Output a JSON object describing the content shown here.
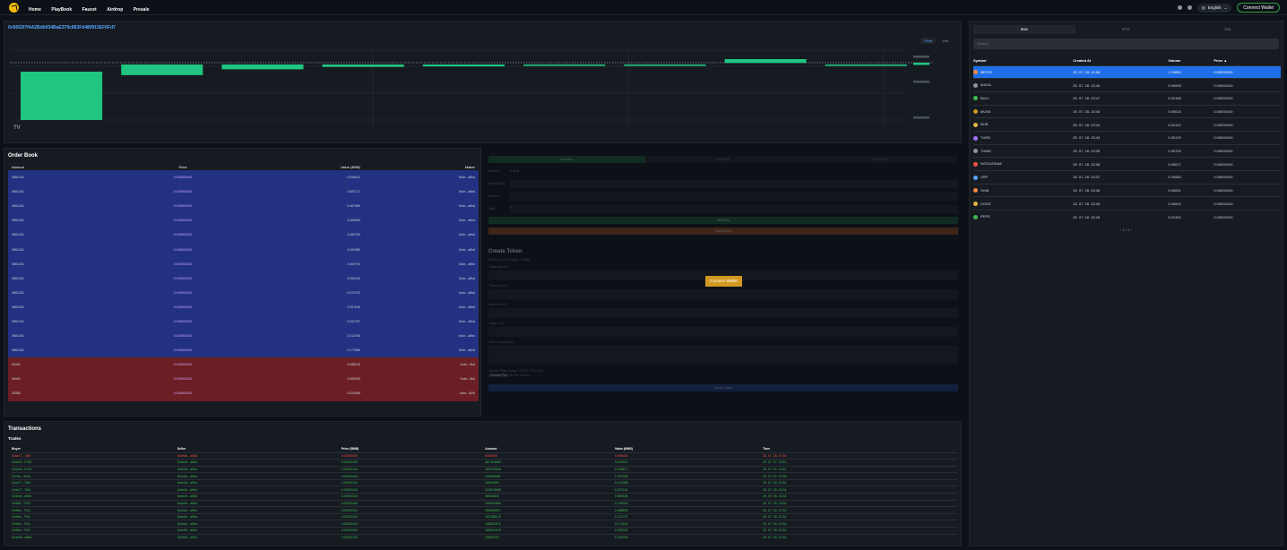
{
  "nav": {
    "items": [
      "Home",
      "PlayBook",
      "Faucet",
      "Airdrop",
      "Presale"
    ],
    "language": "English",
    "connect_label": "Connect Wallet"
  },
  "chart": {
    "address": "0x9652f7f4A2Bdb934BaE379c883Fd4Bf915EF6Fd7",
    "tabs": [
      "Price",
      "Info"
    ],
    "logo": "TV"
  },
  "chart_data": {
    "type": "bar",
    "title": "",
    "note": "candlestick-style price chart; 9 green candles descending",
    "series": [
      {
        "values": [
          1,
          0.22,
          0.1,
          0.05,
          0.04,
          0.03,
          0.03,
          0.08,
          0.03
        ]
      }
    ]
  },
  "markets": {
    "tabs": [
      "BNB",
      "ETH",
      "SOL"
    ],
    "search_placeholder": "Search",
    "headers": [
      "Symbol",
      "Created At",
      "Volume",
      "Price ▲"
    ],
    "rows": [
      {
        "symbol": "BECEX",
        "created": "25. 07. 28. 13:56",
        "volume": "1.19850",
        "price": "0.00000100",
        "color": "#f0883e"
      },
      {
        "symbol": "MAGA",
        "created": "25. 07. 28. 23:46",
        "volume": "0.00095",
        "price": "0.00000100",
        "color": "#8b949e"
      },
      {
        "symbol": "BULL",
        "created": "25. 07. 28. 23:47",
        "volume": "0.00168",
        "price": "0.00000100",
        "color": "#3fb950"
      },
      {
        "symbol": "MUSK",
        "created": "25. 07. 28. 23:45",
        "volume": "0.00015",
        "price": "0.00000100",
        "color": "#d29922"
      },
      {
        "symbol": "BOB",
        "created": "25. 07. 28. 23:44",
        "volume": "0.01412",
        "price": "0.00000100",
        "color": "#e3b341"
      },
      {
        "symbol": "TURD",
        "created": "25. 07. 28. 23:43",
        "volume": "0.00125",
        "price": "0.00000100",
        "color": "#a371f7"
      },
      {
        "symbol": "THINK",
        "created": "25. 07. 28. 23:39",
        "volume": "0.00763",
        "price": "0.00000100",
        "color": "#8b949e"
      },
      {
        "symbol": "INSTAGRAM",
        "created": "25. 07. 28. 23:38",
        "volume": "0.00017",
        "price": "0.00000100",
        "color": "#f85149"
      },
      {
        "symbol": "XRP",
        "created": "25. 07. 28. 23:37",
        "volume": "0.00083",
        "price": "0.00000100",
        "color": "#58a6ff"
      },
      {
        "symbol": "SHIB",
        "created": "25. 07. 28. 23:36",
        "volume": "0.00051",
        "price": "0.00000100",
        "color": "#f0883e"
      },
      {
        "symbol": "DOGE",
        "created": "25. 07. 28. 23:35",
        "volume": "0.00003",
        "price": "0.00000100",
        "color": "#e3b341"
      },
      {
        "symbol": "PEPE",
        "created": "25. 07. 28. 23:28",
        "volume": "0.01300",
        "price": "0.00000100",
        "color": "#3fb950"
      }
    ],
    "pager": "‹   1 / 1   ›"
  },
  "orderbook": {
    "title": "Order Book",
    "headers": [
      "Amount",
      "Price",
      "Value (BNB)",
      "Maker"
    ],
    "rows": [
      {
        "side": "buy",
        "amount": "9651234",
        "price": "0.000000100",
        "value": "0.096512",
        "maker": "0x4e...a5bd"
      },
      {
        "side": "buy",
        "amount": "9651234",
        "price": "0.000000100",
        "value": "0.681717",
        "maker": "0x4e...a5bd"
      },
      {
        "side": "buy",
        "amount": "9651234",
        "price": "0.000000100",
        "value": "0.467989",
        "maker": "0x4e...a5bd"
      },
      {
        "side": "buy",
        "amount": "9651234",
        "price": "0.000000100",
        "value": "0.466593",
        "maker": "0x4e...a5bd"
      },
      {
        "side": "buy",
        "amount": "9651234",
        "price": "0.000000100",
        "value": "0.460783",
        "maker": "0x4e...a5bd"
      },
      {
        "side": "buy",
        "amount": "9651234",
        "price": "0.000000100",
        "value": "0.420389",
        "maker": "0x4e...a5bd"
      },
      {
        "side": "buy",
        "amount": "9651234",
        "price": "0.000000100",
        "value": "0.409794",
        "maker": "0x4e...a5bd"
      },
      {
        "side": "buy",
        "amount": "9651234",
        "price": "0.000000100",
        "value": "0.390244",
        "maker": "0x4e...a5bd"
      },
      {
        "side": "buy",
        "amount": "9651234",
        "price": "0.000000100",
        "value": "0.374732",
        "maker": "0x4e...a5bd"
      },
      {
        "side": "buy",
        "amount": "9651234",
        "price": "0.000000100",
        "value": "0.357049",
        "maker": "0x4e...a5bd"
      },
      {
        "side": "buy",
        "amount": "9651234",
        "price": "0.000000100",
        "value": "0.331797",
        "maker": "0x4e...a5bd"
      },
      {
        "side": "buy",
        "amount": "9651234",
        "price": "0.000000100",
        "value": "0.313784",
        "maker": "0x4e...a5bd"
      },
      {
        "side": "buy",
        "amount": "9651234",
        "price": "0.000000100",
        "value": "0.277666",
        "maker": "0x4e...a5bd"
      },
      {
        "side": "sell",
        "amount": "99462",
        "price": "0.000000100",
        "value": "0.088216",
        "maker": "0x4e...5bd"
      },
      {
        "side": "sell",
        "amount": "56960",
        "price": "0.000000100",
        "value": "0.080093",
        "maker": "0x4e...5bd"
      },
      {
        "side": "sell",
        "amount": "26380",
        "price": "0.000000100",
        "value": "0.024958",
        "maker": "0x4e...6f2b"
      }
    ]
  },
  "trade": {
    "tabs": [
      "Limit Buy",
      "Limit Sell",
      "Cancel All"
    ],
    "fields": [
      {
        "label": "Balance",
        "value": "0 BNB"
      },
      {
        "label": "Price (BNB)",
        "value": ""
      },
      {
        "label": "Amount",
        "value": ""
      },
      {
        "label": "Total",
        "value": "0"
      }
    ],
    "buy_label": "Limit Buy",
    "sell_label": "Market Sell"
  },
  "create_token": {
    "title": "Create Token",
    "subtitle": "Bonding Curve Target: 9 BNB",
    "fields": [
      "Token Symbol *",
      "Token Name *",
      "Website URL",
      "Twitter URL",
      "Token Description"
    ],
    "upload_label": "Upload Token Image * (PNG, JPG etc.)",
    "choose_file": "Choose File",
    "no_file": "No file chosen",
    "create_label": "Create Token",
    "connect_label": "Connect Wallet"
  },
  "transactions": {
    "title": "Transactions",
    "subtitle": "Trades",
    "headers": [
      "Buyer",
      "Seller",
      "Price (BNB)",
      "Amount",
      "Value (BNB)",
      "Time"
    ],
    "rows": [
      {
        "side": "red",
        "buyer": "0x4a77...78ef",
        "seller": "0x4e4b...a5bd",
        "price": "0.00000100",
        "amount": "9050000",
        "value": "0.905000",
        "time": "25. 07. 28. 07:46"
      },
      {
        "side": "green",
        "buyer": "0x4e4b...F024",
        "seller": "0x4e4b...a5bd",
        "price": "0.00000100",
        "amount": "367164689",
        "value": "0.076457",
        "time": "25. 07. 27. 10:51"
      },
      {
        "side": "green",
        "buyer": "0x4e4b...F024",
        "seller": "0x4e4b...a5bd",
        "price": "0.00000100",
        "amount": "182372835",
        "value": "0.198677",
        "time": "25. 07. 27. 10:51"
      },
      {
        "side": "green",
        "buyer": "0x7f0c...9191",
        "seller": "0x4e4b...a5bd",
        "price": "0.00000100",
        "amount": "129054681",
        "value": "0.307993",
        "time": "25. 07. 27. 07:58"
      },
      {
        "side": "green",
        "buyer": "0x4a77...78ef",
        "seller": "0x4e4b...a5bd",
        "price": "0.00000100",
        "amount": "34654500",
        "value": "0.470089",
        "time": "25. 07. 26. 23:34"
      },
      {
        "side": "green",
        "buyer": "0x4a77...78ef",
        "seller": "0x4e4b...a5bd",
        "price": "0.00000100",
        "amount": "224673668",
        "value": "0.347116",
        "time": "25. 07. 26. 23:34"
      },
      {
        "side": "green",
        "buyer": "0x4e4b...a5bd",
        "seller": "0x4e4b...a5bd",
        "price": "0.00000100",
        "amount": "38936800",
        "value": "0.389655",
        "time": "25. 07. 26. 23:34"
      },
      {
        "side": "green",
        "buyer": "0x9fb4...7941",
        "seller": "0x4e4b...a5bd",
        "price": "0.00000100",
        "amount": "199042360",
        "value": "0.199004",
        "time": "25. 07. 26. 23:34"
      },
      {
        "side": "green",
        "buyer": "0x9fb4...7941",
        "seller": "0x4e4b...a5bd",
        "price": "0.00000100",
        "amount": "265694807",
        "value": "0.385805",
        "time": "25. 07. 26. 23:34"
      },
      {
        "side": "green",
        "buyer": "0x9fb4...7941",
        "seller": "0x4e4b...a5bd",
        "price": "0.00000100",
        "amount": "162188078",
        "value": "0.137707",
        "time": "25. 07. 26. 23:34"
      },
      {
        "side": "green",
        "buyer": "0x9fb4...7941",
        "seller": "0x4e4b...a5bd",
        "price": "0.00000100",
        "amount": "188341870",
        "value": "0.174824",
        "time": "25. 07. 26. 23:34"
      },
      {
        "side": "green",
        "buyer": "0x9fb4...7941",
        "seller": "0x4e4b...a5bd",
        "price": "0.00000100",
        "amount": "186331578",
        "value": "0.180322",
        "time": "25. 07. 26. 23:34"
      },
      {
        "side": "green",
        "buyer": "0x4e4b...a5bd",
        "seller": "0x4e4b...a5bd",
        "price": "0.00000100",
        "amount": "33600000",
        "value": "0.336000",
        "time": "25. 07. 26. 23:34"
      }
    ]
  }
}
